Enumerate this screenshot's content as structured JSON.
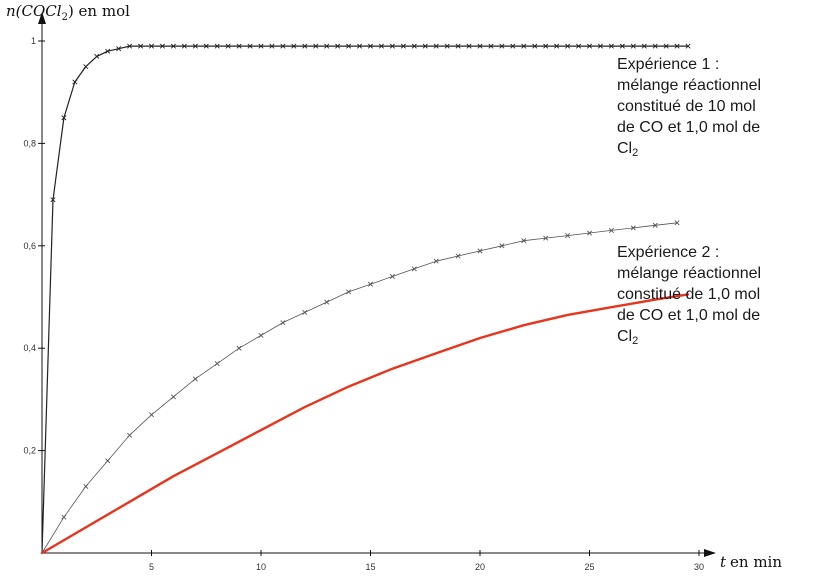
{
  "chart_data": {
    "type": "line",
    "ylabel_prefix": "n(COCl",
    "ylabel_sub": "2",
    "ylabel_suffix": ") en mol",
    "xlabel_var": "t",
    "xlabel_unit": "en min",
    "x_ticks": [
      "5",
      "10",
      "15",
      "20",
      "25",
      "30"
    ],
    "x_tick_values": [
      5,
      10,
      15,
      20,
      25,
      30
    ],
    "y_ticks": [
      "0,2",
      "0,4",
      "0,6",
      "0,8",
      "1"
    ],
    "y_tick_values": [
      0.2,
      0.4,
      0.6,
      0.8,
      1.0
    ],
    "xlim": [
      0,
      30
    ],
    "ylim": [
      0,
      1
    ],
    "grid": false,
    "series": [
      {
        "color": "#222222",
        "markers": "x",
        "x": [
          0,
          0.5,
          1,
          1.5,
          2,
          2.5,
          3,
          3.5,
          4,
          4.5,
          5,
          5.5,
          6,
          6.5,
          7,
          7.5,
          8,
          8.5,
          9,
          9.5,
          10,
          10.5,
          11,
          11.5,
          12,
          12.5,
          13,
          13.5,
          14,
          14.5,
          15,
          15.5,
          16,
          16.5,
          17,
          17.5,
          18,
          18.5,
          19,
          19.5,
          20,
          20.5,
          21,
          21.5,
          22,
          22.5,
          23,
          23.5,
          24,
          24.5,
          25,
          25.5,
          26,
          26.5,
          27,
          27.5,
          28,
          28.5,
          29,
          29.5
        ],
        "y": [
          0,
          0.69,
          0.85,
          0.92,
          0.95,
          0.97,
          0.98,
          0.985,
          0.99,
          0.99,
          0.99,
          0.99,
          0.99,
          0.99,
          0.99,
          0.99,
          0.99,
          0.99,
          0.99,
          0.99,
          0.99,
          0.99,
          0.99,
          0.99,
          0.99,
          0.99,
          0.99,
          0.99,
          0.99,
          0.99,
          0.99,
          0.99,
          0.99,
          0.99,
          0.99,
          0.99,
          0.99,
          0.99,
          0.99,
          0.99,
          0.99,
          0.99,
          0.99,
          0.99,
          0.99,
          0.99,
          0.99,
          0.99,
          0.99,
          0.99,
          0.99,
          0.99,
          0.99,
          0.99,
          0.99,
          0.99,
          0.99,
          0.99,
          0.99,
          0.99
        ]
      },
      {
        "color": "#555555",
        "markers": "x",
        "x": [
          0,
          1,
          2,
          3,
          4,
          5,
          6,
          7,
          8,
          9,
          10,
          11,
          12,
          13,
          14,
          15,
          16,
          17,
          18,
          19,
          20,
          21,
          22,
          23,
          24,
          25,
          26,
          27,
          28,
          29
        ],
        "y": [
          0,
          0.07,
          0.13,
          0.18,
          0.23,
          0.27,
          0.305,
          0.34,
          0.37,
          0.4,
          0.425,
          0.45,
          0.47,
          0.49,
          0.51,
          0.525,
          0.54,
          0.555,
          0.57,
          0.58,
          0.59,
          0.6,
          0.61,
          0.615,
          0.62,
          0.625,
          0.63,
          0.635,
          0.64,
          0.645
        ]
      },
      {
        "color": "#e8341c",
        "markers": "none",
        "x": [
          0,
          2,
          4,
          6,
          8,
          10,
          12,
          14,
          16,
          18,
          20,
          22,
          24,
          26,
          28,
          29.5
        ],
        "y": [
          0,
          0.05,
          0.1,
          0.15,
          0.195,
          0.24,
          0.285,
          0.325,
          0.36,
          0.39,
          0.42,
          0.445,
          0.465,
          0.48,
          0.495,
          0.505
        ]
      }
    ],
    "annotations": [
      {
        "lines": [
          "Expérience 1 :",
          "mélange réactionnel",
          "constitué de 10 mol",
          "de CO et 1,0 mol de",
          "Cl"
        ],
        "last_sub": "2"
      },
      {
        "lines": [
          "Expérience 2 :",
          "mélange réactionnel",
          "constitué de 1,0 mol",
          "de CO et 1,0 mol de",
          "Cl"
        ],
        "last_sub": "2"
      }
    ]
  }
}
